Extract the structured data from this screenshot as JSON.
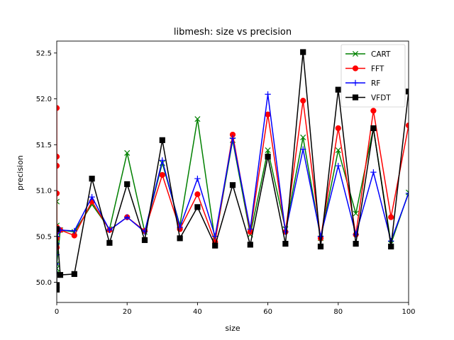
{
  "chart_data": {
    "type": "line",
    "title": "libmesh: size vs precision",
    "xlabel": "size",
    "ylabel": "precision",
    "xlim": [
      0,
      100
    ],
    "ylim": [
      49.78,
      52.63
    ],
    "xticks": [
      0,
      20,
      40,
      60,
      80,
      100
    ],
    "xtick_labels": [
      "0",
      "20",
      "40",
      "60",
      "80",
      "100"
    ],
    "yticks": [
      50.0,
      50.5,
      51.0,
      51.5,
      52.0,
      52.5
    ],
    "ytick_labels": [
      "50.0",
      "50.5",
      "51.0",
      "51.5",
      "52.0",
      "52.5"
    ],
    "legend_position": "top-right",
    "series": [
      {
        "name": "CART",
        "color": "#008000",
        "marker": "x",
        "x": [
          0,
          0,
          0,
          0,
          0,
          0,
          0,
          0,
          1,
          5,
          10,
          15,
          20,
          25,
          30,
          35,
          40,
          45,
          50,
          55,
          60,
          65,
          70,
          75,
          80,
          85,
          90,
          95,
          100
        ],
        "y": [
          50.88,
          50.62,
          50.55,
          50.48,
          50.4,
          50.15,
          50.1,
          50.2,
          50.57,
          50.55,
          50.85,
          50.58,
          51.41,
          50.55,
          51.3,
          50.62,
          51.78,
          50.45,
          51.55,
          50.52,
          51.44,
          50.58,
          51.58,
          50.48,
          51.44,
          50.75,
          51.68,
          50.42,
          50.98
        ]
      },
      {
        "name": "FFT",
        "color": "#ff0000",
        "marker": "circle",
        "x": [
          0,
          0,
          0,
          0,
          0,
          0,
          0,
          0,
          1,
          5,
          10,
          15,
          20,
          25,
          30,
          35,
          40,
          45,
          50,
          55,
          60,
          65,
          70,
          75,
          80,
          85,
          90,
          95,
          100
        ],
        "y": [
          51.9,
          51.37,
          51.27,
          50.97,
          50.6,
          50.48,
          50.38,
          50.55,
          50.57,
          50.51,
          50.88,
          50.57,
          50.71,
          50.56,
          51.17,
          50.58,
          50.96,
          50.44,
          51.61,
          50.55,
          51.83,
          50.55,
          51.98,
          50.48,
          51.68,
          50.52,
          51.87,
          50.71,
          51.71
        ]
      },
      {
        "name": "RF",
        "color": "#0000ff",
        "marker": "plus",
        "x": [
          0,
          0,
          0,
          0,
          0,
          1,
          5,
          10,
          15,
          20,
          25,
          30,
          35,
          40,
          45,
          50,
          55,
          60,
          65,
          70,
          75,
          80,
          85,
          90,
          95,
          100
        ],
        "y": [
          50.42,
          50.3,
          50.2,
          50.1,
          50.5,
          50.57,
          50.56,
          50.93,
          50.57,
          50.71,
          50.55,
          51.33,
          50.6,
          51.13,
          50.5,
          51.57,
          50.58,
          52.05,
          50.55,
          51.45,
          50.5,
          51.27,
          50.52,
          51.2,
          50.45,
          50.97
        ]
      },
      {
        "name": "VFDT",
        "color": "#000000",
        "marker": "square",
        "x": [
          0,
          0,
          0,
          1,
          5,
          10,
          15,
          20,
          25,
          30,
          35,
          40,
          45,
          50,
          55,
          60,
          65,
          70,
          75,
          80,
          85,
          90,
          95,
          100
        ],
        "y": [
          49.92,
          49.97,
          50.58,
          50.08,
          50.09,
          51.13,
          50.43,
          51.07,
          50.46,
          51.55,
          50.48,
          50.82,
          50.4,
          51.06,
          50.41,
          51.37,
          50.42,
          52.51,
          50.39,
          52.1,
          50.42,
          51.68,
          50.39,
          52.08
        ]
      }
    ]
  }
}
